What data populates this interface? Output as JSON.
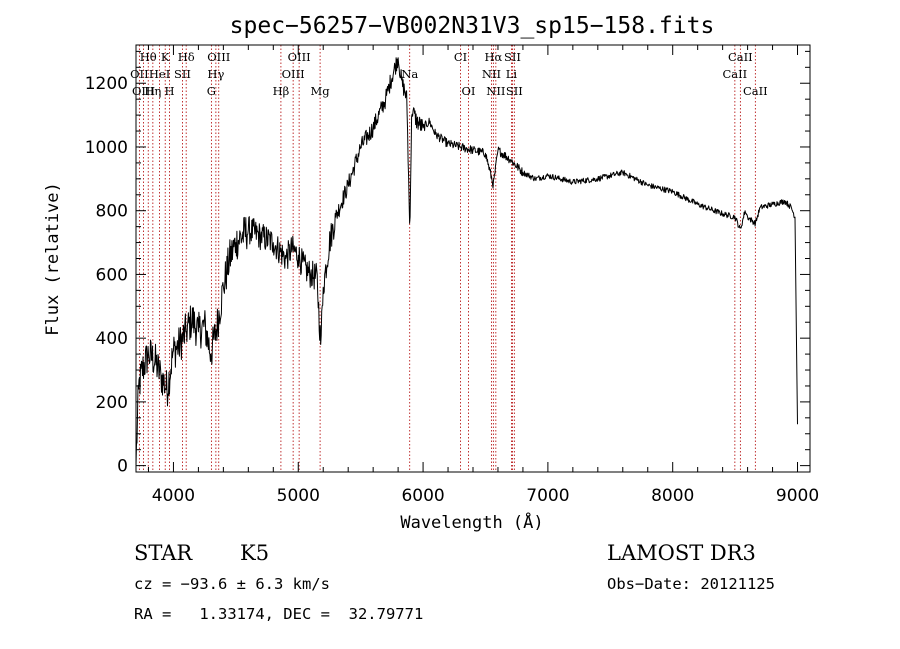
{
  "title": "spec−56257−VB002N31V3_sp15−158.fits",
  "info": {
    "object_class": "STAR",
    "subclass": "K5",
    "survey": "LAMOST DR3",
    "cz": "cz = −93.6 ± 6.3 km/s",
    "obs_date": "Obs−Date: 20121125",
    "coords": "RA =   1.33174, DEC =  32.79771"
  },
  "chart_data": {
    "type": "line",
    "title": "spec−56257−VB002N31V3_sp15−158.fits",
    "xlabel": "Wavelength (Å)",
    "ylabel": "Flux (relative)",
    "xlim": [
      3700,
      9100
    ],
    "ylim": [
      -20,
      1320
    ],
    "x_ticks": [
      4000,
      5000,
      6000,
      7000,
      8000,
      9000
    ],
    "y_ticks": [
      0,
      200,
      400,
      600,
      800,
      1000,
      1200
    ],
    "grid": false,
    "line_color": "#000000",
    "marker_color": "#b00000",
    "spectrum": {
      "x": [
        3700,
        3720,
        3750,
        3800,
        3850,
        3900,
        3950,
        4000,
        4050,
        4100,
        4150,
        4200,
        4250,
        4300,
        4350,
        4400,
        4450,
        4500,
        4600,
        4700,
        4800,
        4900,
        4950,
        5000,
        5050,
        5100,
        5150,
        5180,
        5200,
        5250,
        5300,
        5400,
        5500,
        5600,
        5700,
        5750,
        5800,
        5830,
        5850,
        5870,
        5893,
        5910,
        5950,
        6000,
        6050,
        6100,
        6200,
        6300,
        6400,
        6500,
        6563,
        6600,
        6700,
        6800,
        6900,
        7000,
        7200,
        7400,
        7600,
        7800,
        8000,
        8200,
        8400,
        8500,
        8542,
        8580,
        8600,
        8662,
        8700,
        8800,
        8900,
        8950,
        8980,
        9000
      ],
      "y": [
        0,
        240,
        300,
        350,
        330,
        280,
        240,
        360,
        380,
        420,
        460,
        420,
        440,
        350,
        440,
        560,
        650,
        700,
        740,
        720,
        700,
        650,
        680,
        660,
        620,
        600,
        590,
        380,
        560,
        700,
        780,
        880,
        1000,
        1060,
        1150,
        1220,
        1280,
        1200,
        1180,
        1150,
        740,
        1120,
        1080,
        1060,
        1080,
        1040,
        1010,
        1000,
        990,
        980,
        880,
        990,
        960,
        920,
        900,
        910,
        890,
        900,
        920,
        880,
        860,
        820,
        790,
        780,
        740,
        800,
        780,
        760,
        810,
        820,
        830,
        810,
        780,
        130
      ]
    },
    "lines": [
      {
        "label": "Hθ",
        "x": 3798,
        "row": 0
      },
      {
        "label": "K",
        "x": 3934,
        "row": 0
      },
      {
        "label": "Hδ",
        "x": 4102,
        "row": 0
      },
      {
        "label": "OIII",
        "x": 4363,
        "row": 0
      },
      {
        "label": "OIII",
        "x": 5007,
        "row": 0
      },
      {
        "label": "CI",
        "x": 6300,
        "row": 0
      },
      {
        "label": "Hα",
        "x": 6563,
        "row": 0
      },
      {
        "label": "SII",
        "x": 6716,
        "row": 0
      },
      {
        "label": "CaII",
        "x": 8542,
        "row": 0
      },
      {
        "label": "OII",
        "x": 3727,
        "row": 1
      },
      {
        "label": "HeI",
        "x": 3889,
        "row": 1
      },
      {
        "label": "SII",
        "x": 4072,
        "row": 1
      },
      {
        "label": "Hγ",
        "x": 4340,
        "row": 1
      },
      {
        "label": "OIII",
        "x": 4959,
        "row": 1
      },
      {
        "label": "Na",
        "x": 5893,
        "row": 1
      },
      {
        "label": "NII",
        "x": 6548,
        "row": 1
      },
      {
        "label": "Li",
        "x": 6708,
        "row": 1
      },
      {
        "label": "CaII",
        "x": 8498,
        "row": 1
      },
      {
        "label": "OIII",
        "x": 3760,
        "row": 2
      },
      {
        "label": "Hη",
        "x": 3835,
        "row": 2
      },
      {
        "label": "H",
        "x": 3969,
        "row": 2
      },
      {
        "label": "G",
        "x": 4304,
        "row": 2
      },
      {
        "label": "Hβ",
        "x": 4861,
        "row": 2
      },
      {
        "label": "Mg",
        "x": 5175,
        "row": 2
      },
      {
        "label": "OI",
        "x": 6364,
        "row": 2
      },
      {
        "label": "NII",
        "x": 6583,
        "row": 2
      },
      {
        "label": "SII",
        "x": 6731,
        "row": 2
      },
      {
        "label": "CaII",
        "x": 8662,
        "row": 2
      }
    ]
  }
}
